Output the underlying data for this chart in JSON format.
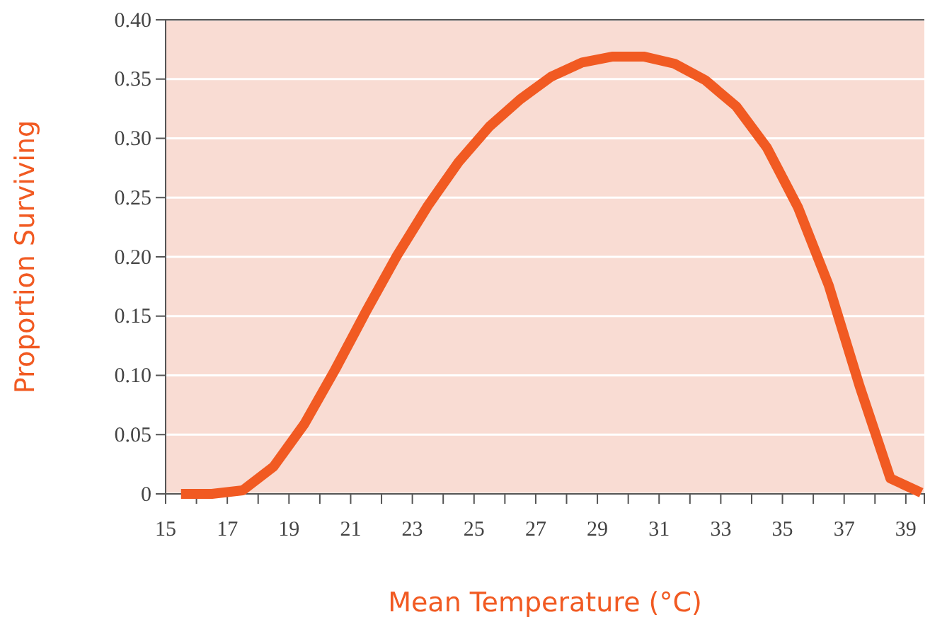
{
  "chart_data": {
    "type": "line",
    "xlabel": "Mean Temperature (°C)",
    "ylabel": "Proportion Surviving",
    "x": [
      15.5,
      16.5,
      17.5,
      18.5,
      19.5,
      20.5,
      21.5,
      22.5,
      23.5,
      24.5,
      25.5,
      26.5,
      27.5,
      28.5,
      29.5,
      30.5,
      31.5,
      32.5,
      33.5,
      34.5,
      35.5,
      36.5,
      37.5,
      38.5,
      39.5
    ],
    "series": [
      {
        "color": "#f15a22",
        "values": [
          0,
          0,
          0.003,
          0.023,
          0.059,
          0.105,
          0.154,
          0.201,
          0.243,
          0.28,
          0.31,
          0.333,
          0.352,
          0.364,
          0.369,
          0.369,
          0.363,
          0.349,
          0.327,
          0.292,
          0.242,
          0.176,
          0.091,
          0.013,
          0.001
        ]
      }
    ],
    "xlim": [
      15,
      39.6
    ],
    "xticks": [
      15,
      {
        "value": 16,
        "label": null
      },
      17,
      {
        "value": 18,
        "label": null
      },
      19,
      {
        "value": 20,
        "label": null
      },
      21,
      {
        "value": 22,
        "label": null
      },
      23,
      {
        "value": 24,
        "label": null
      },
      25,
      {
        "value": 26,
        "label": null
      },
      27,
      {
        "value": 28,
        "label": null
      },
      29,
      {
        "value": 30,
        "label": null
      },
      31,
      {
        "value": 32,
        "label": null
      },
      33,
      {
        "value": 34,
        "label": null
      },
      35,
      {
        "value": 36,
        "label": null
      },
      37,
      {
        "value": 38,
        "label": null
      },
      39
    ],
    "ylim": [
      0,
      0.4
    ],
    "yticks": [
      0,
      {
        "value": 0.05,
        "label": "0.05"
      },
      {
        "value": 0.1,
        "label": "0.10"
      },
      {
        "value": 0.15,
        "label": "0.15"
      },
      {
        "value": 0.2,
        "label": "0.20"
      },
      {
        "value": 0.25,
        "label": "0.25"
      },
      {
        "value": 0.3,
        "label": "0.30"
      },
      {
        "value": 0.35,
        "label": "0.35"
      },
      {
        "value": 0.4,
        "label": "0.40"
      }
    ],
    "grid": "y",
    "marker": "none",
    "line_style": "solid"
  }
}
